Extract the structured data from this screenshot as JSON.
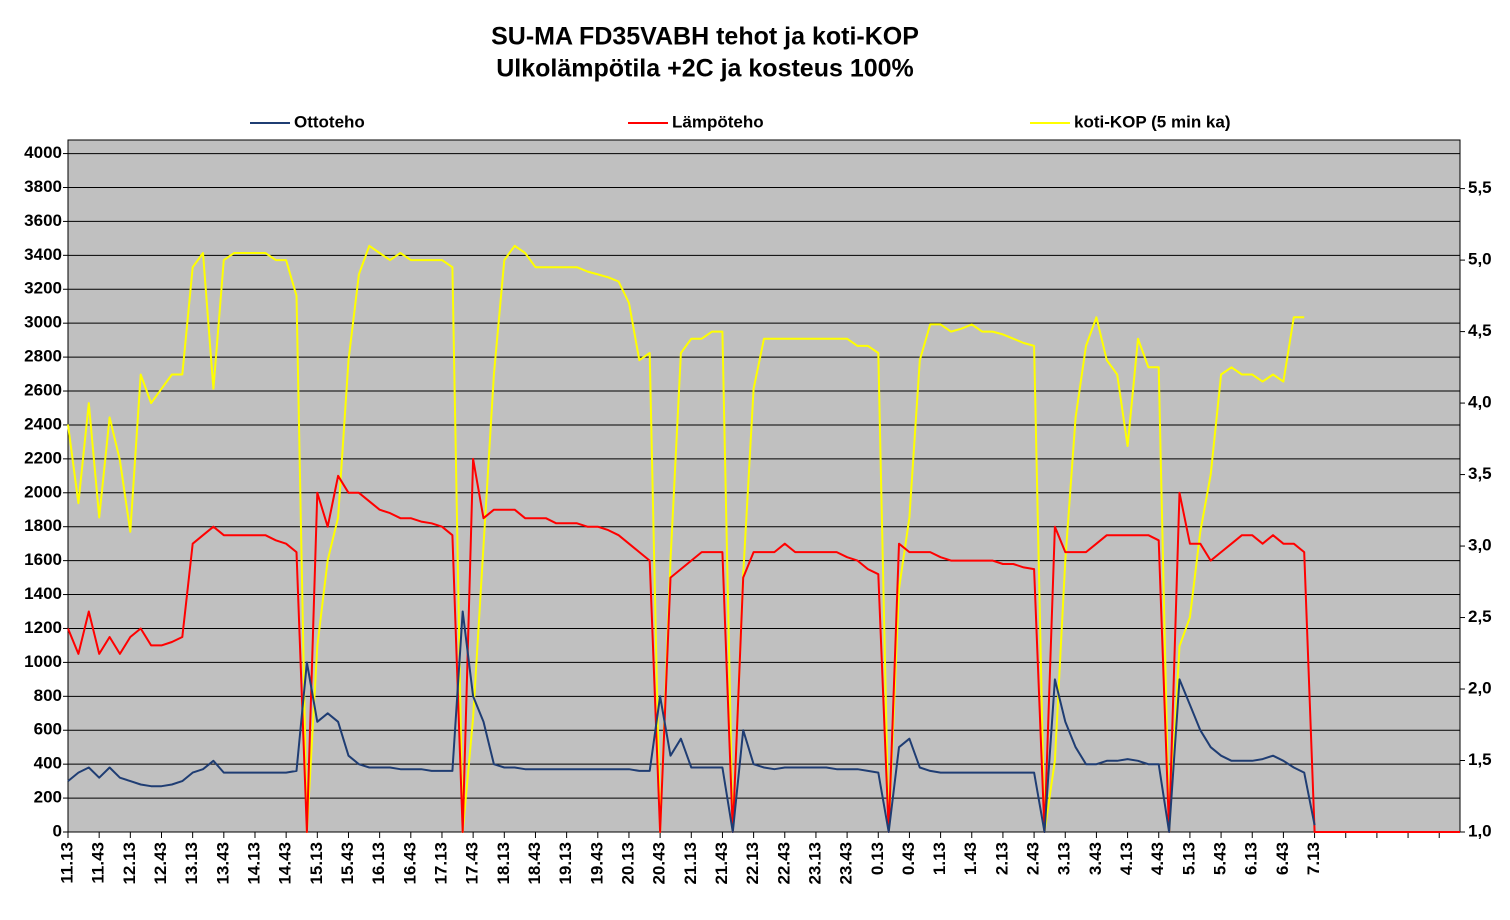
{
  "chart_data": {
    "type": "line",
    "title": "SU-MA FD35VABH tehot ja koti-KOP",
    "subtitle": "Ulkolämpötila +2C ja kosteus 100%",
    "categories": [
      "11.13",
      null,
      null,
      "11.43",
      null,
      null,
      "12.13",
      null,
      null,
      "12.43",
      null,
      null,
      "13.13",
      null,
      null,
      "13.43",
      null,
      null,
      "14.13",
      null,
      null,
      "14.43",
      null,
      null,
      "15.13",
      null,
      null,
      "15.43",
      null,
      null,
      "16.13",
      null,
      null,
      "16.43",
      null,
      null,
      "17.13",
      null,
      null,
      "17.43",
      null,
      null,
      "18.13",
      null,
      null,
      "18.43",
      null,
      null,
      "19.13",
      null,
      null,
      "19.43",
      null,
      null,
      "20.13",
      null,
      null,
      "20.43",
      null,
      null,
      "21.13",
      null,
      null,
      "21.43",
      null,
      null,
      "22.13",
      null,
      null,
      "22.43",
      null,
      null,
      "23.13",
      null,
      null,
      "23.43",
      null,
      null,
      "0.13",
      null,
      null,
      "0.43",
      null,
      null,
      "1.13",
      null,
      null,
      "1.43",
      null,
      null,
      "2.13",
      null,
      null,
      "2.43",
      null,
      null,
      "3.13",
      null,
      null,
      "3.43",
      null,
      null,
      "4.13",
      null,
      null,
      "4.43",
      null,
      null,
      "5.13",
      null,
      null,
      "5.43",
      null,
      null,
      "6.13",
      null,
      null,
      "6.43",
      null,
      null,
      "7.13",
      null,
      null,
      null,
      null,
      null,
      null,
      null,
      null,
      null,
      null,
      null,
      null,
      null,
      null
    ],
    "series": [
      {
        "name": "Ottoteho",
        "color": "#1f3d73",
        "values": [
          300,
          350,
          380,
          320,
          380,
          320,
          300,
          280,
          270,
          270,
          280,
          300,
          350,
          370,
          420,
          350,
          350,
          350,
          350,
          350,
          350,
          350,
          360,
          1000,
          650,
          700,
          650,
          450,
          400,
          380,
          380,
          380,
          370,
          370,
          370,
          360,
          360,
          360,
          1300,
          800,
          650,
          400,
          380,
          380,
          370,
          370,
          370,
          370,
          370,
          370,
          370,
          370,
          370,
          370,
          370,
          360,
          360,
          800,
          450,
          550,
          380,
          380,
          380,
          380,
          0,
          600,
          400,
          380,
          370,
          380,
          380,
          380,
          380,
          380,
          370,
          370,
          370,
          360,
          350,
          0,
          500,
          550,
          380,
          360,
          350,
          350,
          350,
          350,
          350,
          350,
          350,
          350,
          350,
          350,
          0,
          900,
          650,
          500,
          400,
          400,
          420,
          420,
          430,
          420,
          400,
          400,
          0,
          900,
          750,
          600,
          500,
          450,
          420,
          420,
          420,
          430,
          450,
          420,
          380,
          350,
          40,
          null,
          null,
          null,
          null,
          null,
          null,
          null,
          null,
          null,
          null,
          null,
          null,
          null,
          null
        ]
      },
      {
        "name": "Lämpöteho",
        "color": "#ff0000",
        "values": [
          1200,
          1050,
          1300,
          1050,
          1150,
          1050,
          1150,
          1200,
          1100,
          1100,
          1120,
          1150,
          1700,
          1750,
          1800,
          1750,
          1750,
          1750,
          1750,
          1750,
          1720,
          1700,
          1650,
          0,
          2000,
          1800,
          2100,
          2000,
          2000,
          1950,
          1900,
          1880,
          1850,
          1850,
          1830,
          1820,
          1800,
          1750,
          0,
          2200,
          1850,
          1900,
          1900,
          1900,
          1850,
          1850,
          1850,
          1820,
          1820,
          1820,
          1800,
          1800,
          1780,
          1750,
          1700,
          1650,
          1600,
          0,
          1500,
          1550,
          1600,
          1650,
          1650,
          1650,
          0,
          1500,
          1650,
          1650,
          1650,
          1700,
          1650,
          1650,
          1650,
          1650,
          1650,
          1620,
          1600,
          1550,
          1520,
          0,
          1700,
          1650,
          1650,
          1650,
          1620,
          1600,
          1600,
          1600,
          1600,
          1600,
          1580,
          1580,
          1560,
          1550,
          0,
          1800,
          1650,
          1650,
          1650,
          1700,
          1750,
          1750,
          1750,
          1750,
          1750,
          1720,
          0,
          2000,
          1700,
          1700,
          1600,
          1650,
          1700,
          1750,
          1750,
          1700,
          1750,
          1700,
          1700,
          1650,
          0,
          0,
          0,
          0,
          0,
          0,
          0,
          0,
          0,
          0,
          0,
          0,
          0,
          0,
          0
        ]
      },
      {
        "name": "koti-KOP (5 min ka)",
        "color": "#ffff00",
        "axis": "y2",
        "values": [
          3.85,
          3.3,
          4.0,
          3.2,
          3.9,
          3.6,
          3.1,
          4.2,
          4.0,
          4.1,
          4.2,
          4.2,
          4.95,
          5.05,
          4.1,
          5.0,
          5.05,
          5.05,
          5.05,
          5.05,
          5.0,
          5.0,
          4.75,
          1.0,
          2.3,
          2.9,
          3.2,
          4.3,
          4.9,
          5.1,
          5.05,
          5.0,
          5.05,
          5.0,
          5.0,
          5.0,
          5.0,
          4.95,
          1.0,
          1.8,
          3.0,
          4.2,
          5.0,
          5.1,
          5.05,
          4.95,
          4.95,
          4.95,
          4.95,
          4.95,
          4.92,
          4.9,
          4.88,
          4.85,
          4.7,
          4.3,
          4.35,
          1.0,
          2.9,
          4.35,
          4.45,
          4.45,
          4.5,
          4.5,
          1.0,
          2.8,
          4.1,
          4.45,
          4.45,
          4.45,
          4.45,
          4.45,
          4.45,
          4.45,
          4.45,
          4.45,
          4.4,
          4.4,
          4.35,
          1.0,
          2.7,
          3.2,
          4.3,
          4.55,
          4.55,
          4.5,
          4.52,
          4.55,
          4.5,
          4.5,
          4.48,
          4.45,
          4.42,
          4.4,
          1.0,
          1.5,
          2.9,
          3.9,
          4.4,
          4.6,
          4.3,
          4.2,
          3.7,
          4.45,
          4.25,
          4.25,
          1.0,
          2.3,
          2.5,
          3.1,
          3.5,
          4.2,
          4.25,
          4.2,
          4.2,
          4.15,
          4.2,
          4.15,
          4.6,
          4.6,
          null,
          null,
          null,
          null,
          null,
          null,
          null,
          null,
          null,
          null,
          null,
          null,
          null,
          null,
          null
        ]
      }
    ],
    "ylim": [
      0,
      4080
    ],
    "yticks": [
      0,
      200,
      400,
      600,
      800,
      1000,
      1200,
      1400,
      1600,
      1800,
      2000,
      2200,
      2400,
      2600,
      2800,
      3000,
      3200,
      3400,
      3600,
      3800,
      4000
    ],
    "y2lim": [
      1.0,
      5.84
    ],
    "y2ticks": [
      {
        "value": 1.0,
        "label": "1,0"
      },
      {
        "value": 1.5,
        "label": "1,5"
      },
      {
        "value": 2.0,
        "label": "2,0"
      },
      {
        "value": 2.5,
        "label": "2,5"
      },
      {
        "value": 3.0,
        "label": "3,0"
      },
      {
        "value": 3.5,
        "label": "3,5"
      },
      {
        "value": 4.0,
        "label": "4,0"
      },
      {
        "value": 4.5,
        "label": "4,5"
      },
      {
        "value": 5.0,
        "label": "5,0"
      },
      {
        "value": 5.5,
        "label": "5,5"
      }
    ],
    "grid": true,
    "legend": "top",
    "background": "#c0c0c0"
  }
}
